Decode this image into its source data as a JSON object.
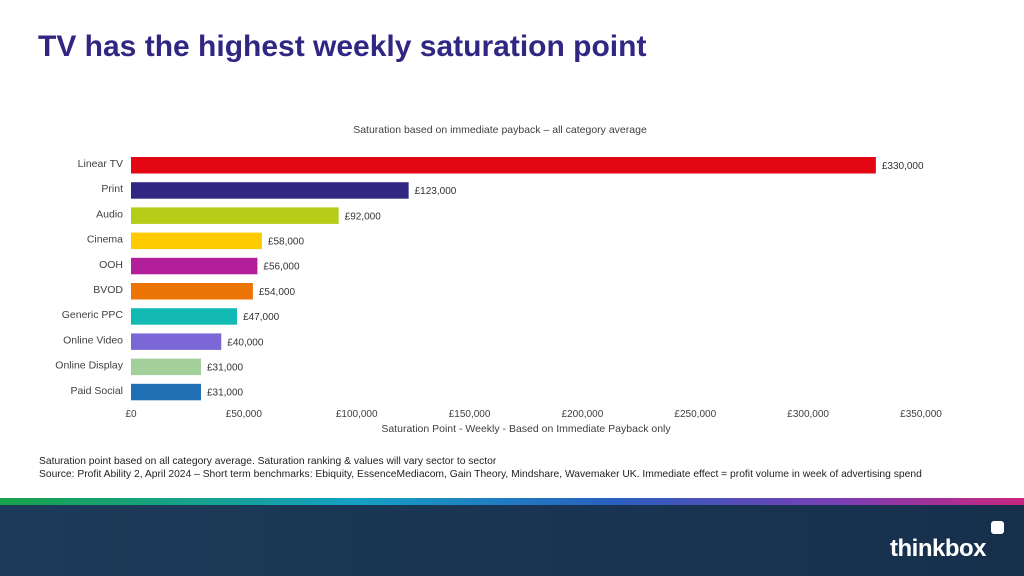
{
  "page": {
    "title": "TV has the highest weekly saturation point"
  },
  "chart_data": {
    "type": "bar",
    "orientation": "horizontal",
    "title": "Saturation based on immediate payback – all category average",
    "xlabel": "Saturation Point - Weekly - Based on Immediate Payback only",
    "ylabel": "",
    "categories": [
      "Linear TV",
      "Print",
      "Audio",
      "Cinema",
      "OOH",
      "BVOD",
      "Generic PPC",
      "Online Video",
      "Online Display",
      "Paid Social"
    ],
    "values": [
      330000,
      123000,
      92000,
      58000,
      56000,
      54000,
      47000,
      40000,
      31000,
      31000
    ],
    "data_labels": [
      "£330,000",
      "£123,000",
      "£92,000",
      "£58,000",
      "£56,000",
      "£54,000",
      "£47,000",
      "£40,000",
      "£31,000",
      "£31,000"
    ],
    "colors": [
      "#e30613",
      "#312783",
      "#b5cc18",
      "#fecb00",
      "#b31e9a",
      "#ec7404",
      "#13bab3",
      "#7b68d6",
      "#a3cf9a",
      "#1f6fb5"
    ],
    "xlim": [
      0,
      350000
    ],
    "x_ticks": [
      "£0",
      "£50,000",
      "£100,000",
      "£150,000",
      "£200,000",
      "£250,000",
      "£300,000",
      "£350,000"
    ],
    "grid": false,
    "legend": "none"
  },
  "footnote": {
    "line1": "Saturation point based on all category average. Saturation ranking & values will vary sector to sector",
    "line2": "Source: Profit Ability 2, April 2024 – Short term benchmarks: Ebiquity, EssenceMediacom, Gain Theory, Mindshare, Wavemaker UK.  Immediate effect = profit volume in week of advertising spend"
  },
  "footer": {
    "brand": "thinkbox",
    "colors": {
      "title": "#312783",
      "footer_bg": "#1d3a5a"
    }
  }
}
